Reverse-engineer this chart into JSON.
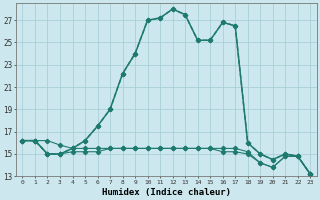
{
  "xlabel": "Humidex (Indice chaleur)",
  "bg_color": "#cce8ee",
  "grid_color": "#aacfd8",
  "line_color": "#1e7a6e",
  "xlim": [
    -0.5,
    23.5
  ],
  "ylim": [
    13,
    28.5
  ],
  "yticks": [
    13,
    15,
    17,
    19,
    21,
    23,
    25,
    27
  ],
  "xticks": [
    0,
    1,
    2,
    3,
    4,
    5,
    6,
    7,
    8,
    9,
    10,
    11,
    12,
    13,
    14,
    15,
    16,
    17,
    18,
    19,
    20,
    21,
    22,
    23
  ],
  "series1": [
    16.2,
    16.2,
    16.2,
    15.8,
    15.5,
    15.5,
    15.5,
    15.5,
    15.5,
    15.5,
    15.5,
    15.5,
    15.5,
    15.5,
    15.5,
    15.5,
    15.5,
    15.5,
    15.2,
    14.2,
    13.8,
    14.8,
    14.8,
    13.2
  ],
  "series2": [
    16.2,
    16.2,
    15.0,
    15.0,
    15.2,
    15.2,
    15.2,
    15.5,
    15.5,
    15.5,
    15.5,
    15.5,
    15.5,
    15.5,
    15.5,
    15.5,
    15.2,
    15.2,
    15.0,
    14.2,
    13.8,
    14.8,
    14.8,
    13.2
  ],
  "series3": [
    16.2,
    16.2,
    15.0,
    15.0,
    15.5,
    16.2,
    17.5,
    19.0,
    22.2,
    24.0,
    27.0,
    27.2,
    28.0,
    27.5,
    25.2,
    25.2,
    26.8,
    26.5,
    16.0,
    15.0,
    14.5,
    15.0,
    14.8,
    13.2
  ],
  "series4": [
    16.2,
    16.2,
    15.0,
    15.0,
    15.5,
    16.2,
    17.5,
    19.0,
    22.2,
    24.0,
    27.0,
    27.2,
    28.0,
    27.5,
    25.2,
    25.2,
    26.8,
    26.5,
    16.0,
    15.0,
    14.5,
    15.0,
    14.8,
    13.2
  ]
}
